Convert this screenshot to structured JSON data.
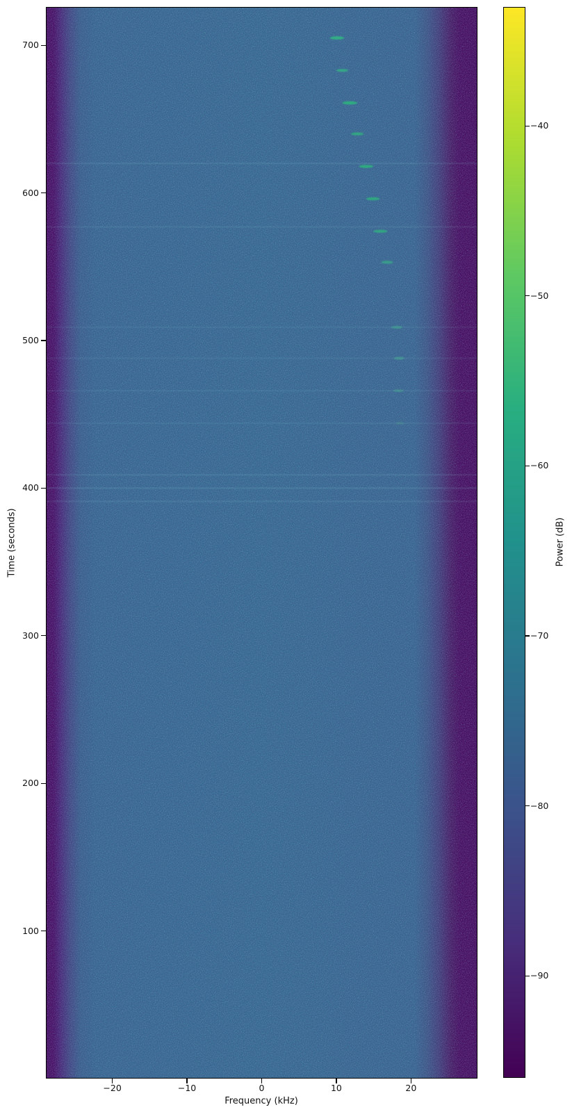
{
  "figure": {
    "kind": "matplotlib-spectrogram",
    "background": "#ffffff",
    "text_color": "#111111"
  },
  "chart_data": {
    "type": "heatmap",
    "title": "",
    "xlabel": "Frequency (kHz)",
    "ylabel": "Time (seconds)",
    "colorbar_label": "Power (dB)",
    "colormap": "viridis",
    "xlim": [
      -28.9,
      28.9
    ],
    "ylim": [
      0,
      726
    ],
    "colorbar_range": [
      -96,
      -33
    ],
    "xticks": [
      -20,
      -10,
      0,
      10,
      20
    ],
    "xtick_labels": [
      "−20",
      "−10",
      "0",
      "10",
      "20"
    ],
    "yticks": [
      100,
      200,
      300,
      400,
      500,
      600,
      700
    ],
    "ytick_labels": [
      "100",
      "200",
      "300",
      "400",
      "500",
      "600",
      "700"
    ],
    "colorbar_ticks": [
      -40,
      -50,
      -60,
      -70,
      -80,
      -90
    ],
    "colorbar_tick_labels": [
      "−40",
      "−50",
      "−60",
      "−70",
      "−80",
      "−90"
    ],
    "grid": false,
    "legend": "colorbar-right",
    "background_noise": {
      "band_center_db": -76,
      "band_edges_db": -95,
      "band_freq_extent_khz": [
        -26.5,
        26.5
      ]
    },
    "events": [
      {
        "time_s": 705,
        "freq_khz": 10.1,
        "width_khz": 1.9,
        "duration_s": 2.2,
        "power_db": -56,
        "color": "#33b383",
        "opacity": 0.95
      },
      {
        "time_s": 683,
        "freq_khz": 10.8,
        "width_khz": 1.6,
        "duration_s": 2.0,
        "power_db": -57,
        "color": "#35b085",
        "opacity": 0.88
      },
      {
        "time_s": 661,
        "freq_khz": 11.8,
        "width_khz": 2.0,
        "duration_s": 2.2,
        "power_db": -56,
        "color": "#2fb07f",
        "opacity": 0.95
      },
      {
        "time_s": 640,
        "freq_khz": 12.8,
        "width_khz": 1.7,
        "duration_s": 2.0,
        "power_db": -57,
        "color": "#31ad80",
        "opacity": 0.9
      },
      {
        "time_s": 618,
        "freq_khz": 14.0,
        "width_khz": 1.9,
        "duration_s": 2.1,
        "power_db": -56,
        "color": "#2eb07e",
        "opacity": 0.92
      },
      {
        "time_s": 596,
        "freq_khz": 14.9,
        "width_khz": 1.8,
        "duration_s": 2.1,
        "power_db": -57,
        "color": "#2fae7f",
        "opacity": 0.9
      },
      {
        "time_s": 574,
        "freq_khz": 15.9,
        "width_khz": 1.9,
        "duration_s": 2.1,
        "power_db": -57,
        "color": "#33ab82",
        "opacity": 0.88
      },
      {
        "time_s": 553,
        "freq_khz": 16.8,
        "width_khz": 1.6,
        "duration_s": 2.0,
        "power_db": -58,
        "color": "#37a987",
        "opacity": 0.8
      },
      {
        "time_s": 509,
        "freq_khz": 18.1,
        "width_khz": 1.5,
        "duration_s": 1.9,
        "power_db": -61,
        "color": "#43a98f",
        "opacity": 0.62
      },
      {
        "time_s": 488,
        "freq_khz": 18.4,
        "width_khz": 1.4,
        "duration_s": 1.9,
        "power_db": -61,
        "color": "#47ab92",
        "opacity": 0.6
      },
      {
        "time_s": 466,
        "freq_khz": 18.3,
        "width_khz": 1.4,
        "duration_s": 1.8,
        "power_db": -63,
        "color": "#4aa891",
        "opacity": 0.5
      },
      {
        "time_s": 444,
        "freq_khz": 18.5,
        "width_khz": 1.2,
        "duration_s": 1.6,
        "power_db": -66,
        "color": "#52a68f",
        "opacity": 0.32
      }
    ],
    "noise_bands": [
      {
        "time_s": 620,
        "opacity": 0.1
      },
      {
        "time_s": 577,
        "opacity": 0.09
      },
      {
        "time_s": 509,
        "opacity": 0.07
      },
      {
        "time_s": 488,
        "opacity": 0.07
      },
      {
        "time_s": 466,
        "opacity": 0.08
      },
      {
        "time_s": 444,
        "opacity": 0.08
      },
      {
        "time_s": 409,
        "opacity": 0.1
      },
      {
        "time_s": 400,
        "opacity": 0.12
      },
      {
        "time_s": 391,
        "opacity": 0.1
      }
    ]
  },
  "colors": {
    "colormap_top": "#fde725",
    "colormap_bottom": "#440154",
    "body_blue": "#2f6b8e",
    "edge_purple": "#440459",
    "colormap_stops": [
      "#fde725",
      "#addc30",
      "#5ec962",
      "#28ae80",
      "#21918c",
      "#2c728e",
      "#3b528b",
      "#472d7b",
      "#440154"
    ],
    "noise_band_color": "#8fd8e0",
    "spine_color": "#000000"
  }
}
